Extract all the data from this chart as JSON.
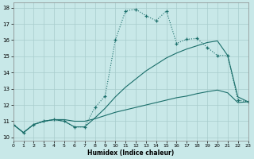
{
  "xlabel": "Humidex (Indice chaleur)",
  "xlim": [
    0,
    23
  ],
  "ylim": [
    9.8,
    18.3
  ],
  "xticks": [
    0,
    1,
    2,
    3,
    4,
    5,
    6,
    7,
    8,
    9,
    10,
    11,
    12,
    13,
    14,
    15,
    16,
    17,
    18,
    19,
    20,
    21,
    22,
    23
  ],
  "yticks": [
    10,
    11,
    12,
    13,
    14,
    15,
    16,
    17,
    18
  ],
  "background_color": "#c8e8e8",
  "grid_color": "#a8cccc",
  "line_color": "#1a6e6a",
  "line1_x": [
    0,
    1,
    2,
    3,
    4,
    5,
    6,
    7,
    8,
    9,
    10,
    11,
    12,
    13,
    14,
    15,
    16,
    17,
    18,
    19,
    20,
    21,
    22,
    23
  ],
  "line1_y": [
    10.8,
    10.3,
    10.8,
    11.0,
    11.1,
    11.0,
    10.65,
    10.65,
    11.85,
    12.55,
    16.0,
    17.8,
    17.9,
    17.5,
    17.2,
    17.8,
    15.8,
    16.05,
    16.1,
    15.55,
    15.05,
    15.05,
    12.3,
    12.2
  ],
  "line2_x": [
    0,
    1,
    2,
    3,
    4,
    5,
    6,
    7,
    8,
    9,
    10,
    11,
    12,
    13,
    14,
    15,
    16,
    17,
    18,
    19,
    20,
    21,
    22,
    23
  ],
  "line2_y": [
    10.8,
    10.3,
    10.8,
    11.0,
    11.1,
    11.0,
    10.65,
    10.65,
    11.2,
    11.8,
    12.5,
    13.1,
    13.6,
    14.1,
    14.5,
    14.9,
    15.2,
    15.45,
    15.65,
    15.85,
    15.95,
    15.05,
    12.5,
    12.2
  ],
  "line3_x": [
    0,
    1,
    2,
    3,
    4,
    5,
    6,
    7,
    8,
    9,
    10,
    11,
    12,
    13,
    14,
    15,
    16,
    17,
    18,
    19,
    20,
    21,
    22,
    23
  ],
  "line3_y": [
    10.8,
    10.3,
    10.8,
    11.0,
    11.1,
    11.1,
    11.0,
    11.0,
    11.15,
    11.35,
    11.55,
    11.7,
    11.85,
    12.0,
    12.15,
    12.3,
    12.45,
    12.55,
    12.7,
    12.82,
    12.92,
    12.75,
    12.15,
    12.2
  ]
}
